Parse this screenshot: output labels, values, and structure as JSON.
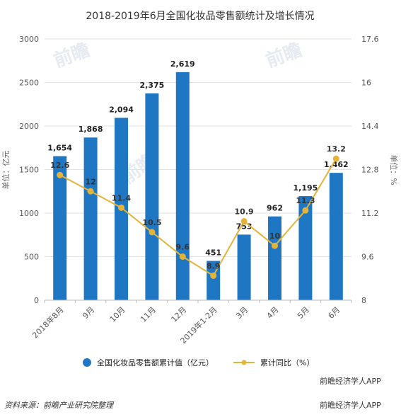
{
  "header": {
    "title": "2018-2019年6月全国化妆品零售额统计及增长情况"
  },
  "colors": {
    "bar": "#1f77c4",
    "line": "#e4b43a",
    "grid": "#e2e2e2"
  },
  "chart_data": {
    "type": "bar",
    "categories": [
      "2018年8月",
      "9月",
      "10月",
      "11月",
      "12月",
      "2019年1-2月",
      "3月",
      "4月",
      "5月",
      "6月"
    ],
    "series": [
      {
        "name": "全国化妆品零售额累计值（亿元）",
        "type": "bar",
        "axis": "left",
        "values": [
          1654,
          1868,
          2094,
          2375,
          2619,
          451,
          753,
          962,
          1195,
          1462
        ],
        "labels": [
          "1,654",
          "1,868",
          "2,094",
          "2,375",
          "2,619",
          "451",
          "753",
          "962",
          "1,195",
          "1,462"
        ]
      },
      {
        "name": "累计同比（%）",
        "type": "line",
        "axis": "right",
        "values": [
          12.6,
          12,
          11.4,
          10.5,
          9.6,
          8.9,
          10.9,
          10,
          11.3,
          13.2
        ],
        "labels": [
          "12.6",
          "12",
          "11.4",
          "10.5",
          "9.6",
          "8.9",
          "10.9",
          "10",
          "11.3",
          "13.2"
        ]
      }
    ],
    "y_left": {
      "label": "单位：亿元",
      "lim": [
        0,
        3000
      ],
      "ticks": [
        0,
        500,
        1000,
        1500,
        2000,
        2500,
        3000
      ],
      "tick_labels": [
        "0",
        "500",
        "1000",
        "1500",
        "2000",
        "2500",
        "3000"
      ]
    },
    "y_right": {
      "label": "单位：%",
      "lim": [
        8,
        17.6
      ],
      "ticks": [
        8,
        9.6,
        11.2,
        12.8,
        14.4,
        16,
        17.6
      ],
      "tick_labels": [
        "8",
        "9.6",
        "11.2",
        "12.8",
        "14.4",
        "16",
        "17.6"
      ]
    },
    "grid": true,
    "legend_position": "bottom"
  },
  "footer": {
    "brand_top": "前瞻经济学人APP",
    "source": "资料来源：前瞻产业研究院整理",
    "brand_bottom": "前瞻经济学人APP"
  }
}
